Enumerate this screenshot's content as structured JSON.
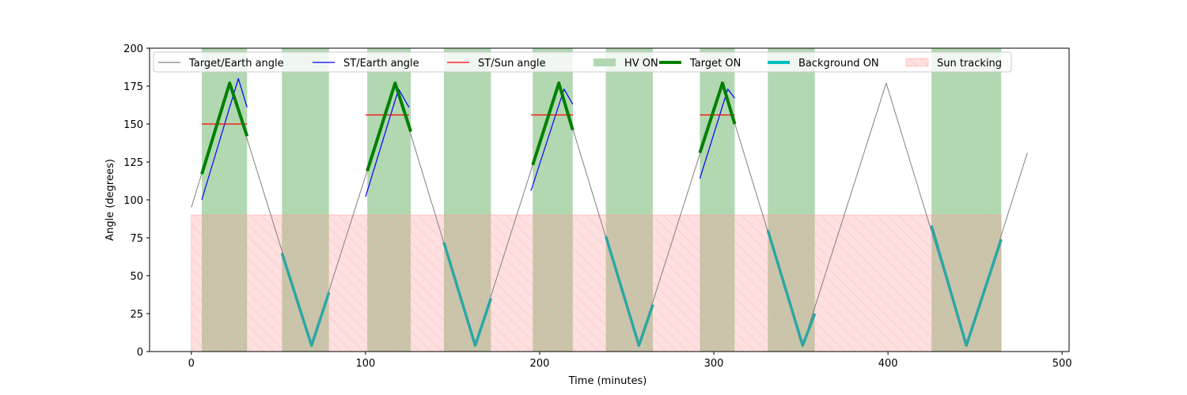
{
  "chart_data": {
    "type": "line",
    "xlabel": "Time (minutes)",
    "ylabel": "Angle (degrees)",
    "xlim": [
      -24,
      504
    ],
    "ylim": [
      0,
      200
    ],
    "xticks": [
      0,
      100,
      200,
      300,
      400,
      500
    ],
    "yticks": [
      0,
      25,
      50,
      75,
      100,
      125,
      150,
      175,
      200
    ],
    "grid": false,
    "legend_position": "top",
    "legend_entries": [
      {
        "label": "Target/Earth angle",
        "style": "line",
        "color": "#808080"
      },
      {
        "label": "ST/Earth angle",
        "style": "line",
        "color": "#0000ff"
      },
      {
        "label": "ST/Sun angle",
        "style": "line",
        "color": "#ff0000"
      },
      {
        "label": "HV ON",
        "style": "patch",
        "color": "#b2d8b2"
      },
      {
        "label": "Target ON",
        "style": "thickline",
        "color": "#008000"
      },
      {
        "label": "Background ON",
        "style": "thickline",
        "color": "#00bfbf"
      },
      {
        "label": "Sun tracking",
        "style": "hatch",
        "color": "#ff9999"
      }
    ],
    "series": [
      {
        "name": "Target/Earth angle",
        "color": "#808080",
        "x": [
          0,
          22,
          69,
          117,
          163,
          211,
          257,
          305,
          351,
          399,
          445,
          480
        ],
        "y": [
          95,
          177,
          4,
          177,
          4,
          177,
          4,
          177,
          4,
          177,
          4,
          131
        ]
      },
      {
        "name": "ST/Earth angle",
        "color": "#0000ff",
        "segments": [
          {
            "x": [
              6,
              27,
              32
            ],
            "y": [
              100,
              180,
              161
            ]
          },
          {
            "x": [
              100,
              119,
              125
            ],
            "y": [
              102,
              173,
              161
            ]
          },
          {
            "x": [
              195,
              214,
              219
            ],
            "y": [
              106,
              173,
              163
            ]
          },
          {
            "x": [
              292,
              308,
              312
            ],
            "y": [
              114,
              173,
              167
            ]
          }
        ]
      },
      {
        "name": "ST/Sun angle",
        "color": "#ff0000",
        "segments": [
          {
            "x": [
              6,
              32
            ],
            "y": [
              150,
              150
            ]
          },
          {
            "x": [
              100,
              125
            ],
            "y": [
              156,
              156
            ]
          },
          {
            "x": [
              195,
              219
            ],
            "y": [
              156,
              156
            ]
          },
          {
            "x": [
              292,
              312
            ],
            "y": [
              156,
              156
            ]
          }
        ]
      },
      {
        "name": "Target ON",
        "color": "#008000",
        "segments": [
          {
            "x": [
              6,
              22,
              32
            ],
            "y": [
              117,
              177,
              142
            ]
          },
          {
            "x": [
              101,
              117,
              126
            ],
            "y": [
              119,
              177,
              145
            ]
          },
          {
            "x": [
              196,
              211,
              219
            ],
            "y": [
              123,
              177,
              146
            ]
          },
          {
            "x": [
              292,
              305,
              312
            ],
            "y": [
              131,
              177,
              150
            ]
          }
        ]
      },
      {
        "name": "Background ON",
        "color": "#2ca6a6",
        "segments": [
          {
            "x": [
              52,
              69,
              79
            ],
            "y": [
              65,
              4,
              39
            ]
          },
          {
            "x": [
              145,
              163,
              172
            ],
            "y": [
              72,
              4,
              35
            ]
          },
          {
            "x": [
              238,
              257,
              265
            ],
            "y": [
              76,
              4,
              31
            ]
          },
          {
            "x": [
              331,
              351,
              358
            ],
            "y": [
              80,
              4,
              25
            ]
          },
          {
            "x": [
              425,
              445,
              465
            ],
            "y": [
              83,
              4,
              74
            ]
          }
        ]
      }
    ],
    "hv_on_intervals": [
      [
        6,
        32
      ],
      [
        52,
        79
      ],
      [
        101,
        126
      ],
      [
        145,
        172
      ],
      [
        196,
        219
      ],
      [
        238,
        265
      ],
      [
        292,
        312
      ],
      [
        331,
        358
      ],
      [
        425,
        465
      ]
    ],
    "sun_tracking": {
      "y_top": 90,
      "intervals": [
        [
          0,
          465
        ]
      ]
    }
  }
}
